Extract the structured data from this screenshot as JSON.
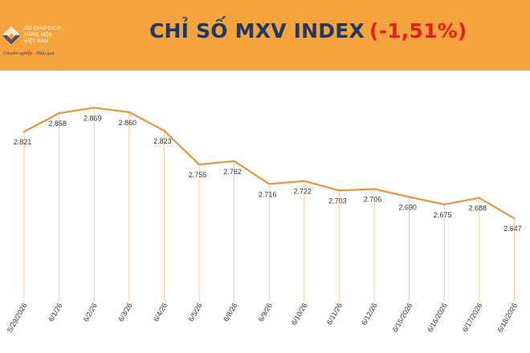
{
  "header": {
    "logo": {
      "line1": "SỞ GIAO DỊCH",
      "line2": "HÀNG HÓA",
      "line3": "VIỆT NAM",
      "slogan": "Chuyên nghiệp - Hiệu quả"
    },
    "title": "CHỈ SỐ MXV INDEX",
    "title_change": "(-1,51%)"
  },
  "colors": {
    "header_bg": "#f5a33c",
    "line": "#f0913a",
    "drop_line": "#f6c08a",
    "title": "#1f3864",
    "change": "#e02020",
    "logo_blue": "#1f3f86"
  },
  "chart_data": {
    "type": "line",
    "title": "",
    "xlabel": "",
    "ylabel": "",
    "categories": [
      "5/29/2026",
      "6/1/26",
      "6/2/26",
      "6/3/26",
      "6/4/26",
      "6/5/26",
      "6/8/26",
      "6/9/26",
      "6/10/26",
      "6/11/26",
      "6/12/26",
      "6/15/2026",
      "6/16/2026",
      "6/17/2026",
      "6/18/2026"
    ],
    "value_labels": [
      "2.821",
      "2.858",
      "2.869",
      "2.860",
      "2.823",
      "2.755",
      "2.762",
      "2.716",
      "2.722",
      "2.703",
      "2.706",
      "2.690",
      "2.675",
      "2.688",
      "2.647"
    ],
    "series": [
      {
        "values": [
          2821,
          2858,
          2869,
          2860,
          2823,
          2755,
          2762,
          2716,
          2722,
          2703,
          2706,
          2690,
          2675,
          2688,
          2647
        ]
      }
    ],
    "ylim": [
      2480,
      2900
    ],
    "grid": false,
    "legend": "none",
    "axis_line_visible": false
  }
}
